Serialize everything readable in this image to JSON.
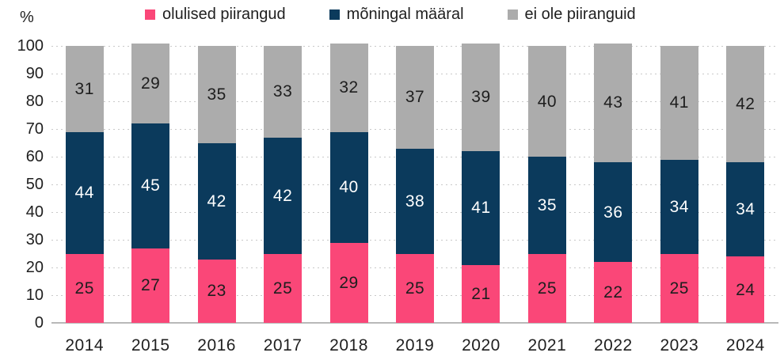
{
  "chart_data": {
    "type": "bar",
    "stacked": true,
    "title": "",
    "ylabel": "%",
    "xlabel": "",
    "ylim": [
      0,
      100
    ],
    "yticks": [
      0,
      10,
      20,
      30,
      40,
      50,
      60,
      70,
      80,
      90,
      100
    ],
    "grid": "horizontal-dotted",
    "legend_position": "top",
    "categories": [
      "2014",
      "2015",
      "2016",
      "2017",
      "2018",
      "2019",
      "2020",
      "2021",
      "2022",
      "2023",
      "2024"
    ],
    "series": [
      {
        "name": "olulised piirangud",
        "color": "#FA4778",
        "label_color": "#1e1e1e",
        "values": [
          25,
          27,
          23,
          25,
          29,
          25,
          21,
          25,
          22,
          25,
          24
        ]
      },
      {
        "name": "mõningal määral",
        "color": "#0B3A5C",
        "label_color": "#ffffff",
        "values": [
          44,
          45,
          42,
          42,
          40,
          38,
          41,
          35,
          36,
          34,
          34
        ]
      },
      {
        "name": "ei ole piiranguid",
        "color": "#ACACAC",
        "label_color": "#1e1e1e",
        "values": [
          31,
          29,
          35,
          33,
          32,
          37,
          39,
          40,
          43,
          41,
          42
        ]
      }
    ]
  }
}
